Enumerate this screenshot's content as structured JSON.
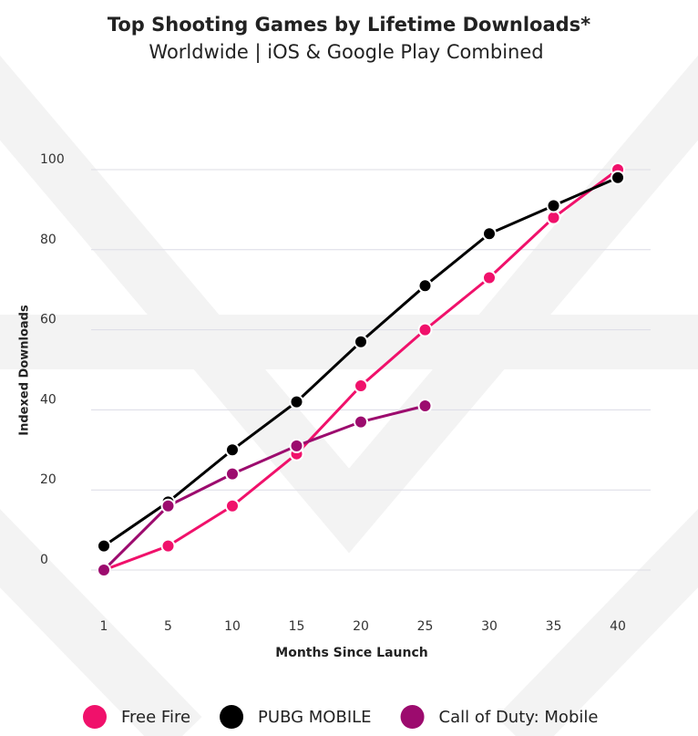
{
  "chart_data": {
    "type": "line",
    "title": "Top Shooting Games by Lifetime Downloads*",
    "subtitle": "Worldwide | iOS & Google Play Combined",
    "x_label": "Months Since Launch",
    "y_label": "Indexed Downloads",
    "categories": [
      "1",
      "5",
      "10",
      "15",
      "20",
      "25",
      "30",
      "35",
      "40"
    ],
    "series": [
      {
        "name": "Free Fire",
        "color": "#f0116b",
        "values": [
          0,
          6,
          16,
          29,
          46,
          60,
          73,
          88,
          100
        ]
      },
      {
        "name": "PUBG MOBILE",
        "color": "#000000",
        "values": [
          6,
          17,
          30,
          42,
          57,
          71,
          84,
          91,
          98
        ]
      },
      {
        "name": "Call of Duty: Mobile",
        "color": "#9c0b6e",
        "values": [
          0,
          16,
          24,
          31,
          37,
          41,
          null,
          null,
          null
        ]
      }
    ],
    "ylim": [
      0,
      100
    ],
    "yticks": [
      0,
      20,
      40,
      60,
      80,
      100
    ],
    "grid": true,
    "legend": "bottom"
  }
}
